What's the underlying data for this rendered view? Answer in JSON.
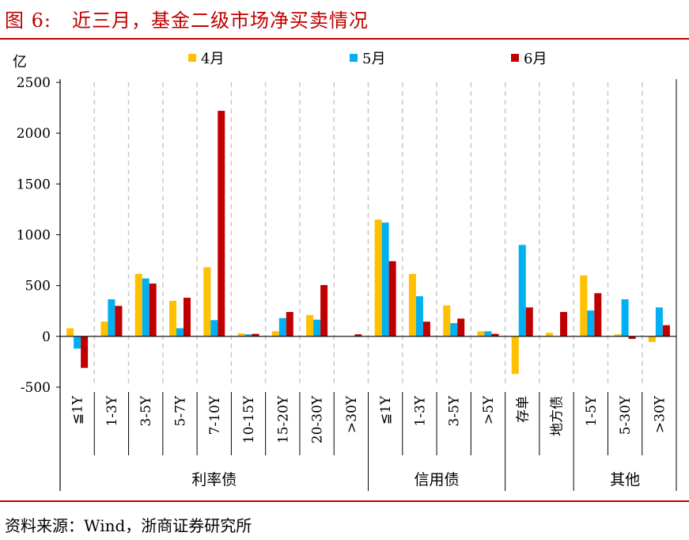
{
  "figure": {
    "number": "图 6:",
    "title": "近三月，基金二级市场净买卖情况",
    "source": "资料来源：Wind，浙商证券研究所"
  },
  "colors": {
    "apr": "#ffc000",
    "may": "#00b0f0",
    "jun": "#c00000",
    "accent": "#c00000"
  },
  "chart_data": {
    "type": "bar",
    "ylabel": "亿",
    "ylim": [
      -500,
      2500
    ],
    "yticks": [
      -500,
      0,
      500,
      1000,
      1500,
      2000,
      2500
    ],
    "legend_position": "top",
    "categories": [
      "≦1Y",
      "1-3Y",
      "3-5Y",
      "5-7Y",
      "7-10Y",
      "10-15Y",
      "15-20Y",
      "20-30Y",
      ">30Y",
      "≦1Y",
      "1-3Y",
      "3-5Y",
      ">5Y",
      "存单",
      "地方债",
      "1-5Y",
      "5-30Y",
      ">30Y"
    ],
    "groups": [
      {
        "label": "利率债",
        "count": 9
      },
      {
        "label": "信用债",
        "count": 4
      },
      {
        "label": "",
        "count": 2
      },
      {
        "label": "其他",
        "count": 3
      }
    ],
    "series": [
      {
        "name": "4月",
        "values": [
          80,
          145,
          615,
          350,
          680,
          30,
          50,
          210,
          0,
          1150,
          615,
          305,
          50,
          -370,
          35,
          600,
          20,
          -55
        ]
      },
      {
        "name": "5月",
        "values": [
          -120,
          365,
          570,
          80,
          160,
          20,
          180,
          165,
          0,
          1120,
          395,
          130,
          50,
          900,
          0,
          255,
          365,
          285
        ]
      },
      {
        "name": "6月",
        "values": [
          -310,
          300,
          520,
          380,
          2220,
          25,
          240,
          505,
          20,
          740,
          145,
          175,
          25,
          285,
          240,
          425,
          -25,
          110
        ]
      }
    ]
  }
}
